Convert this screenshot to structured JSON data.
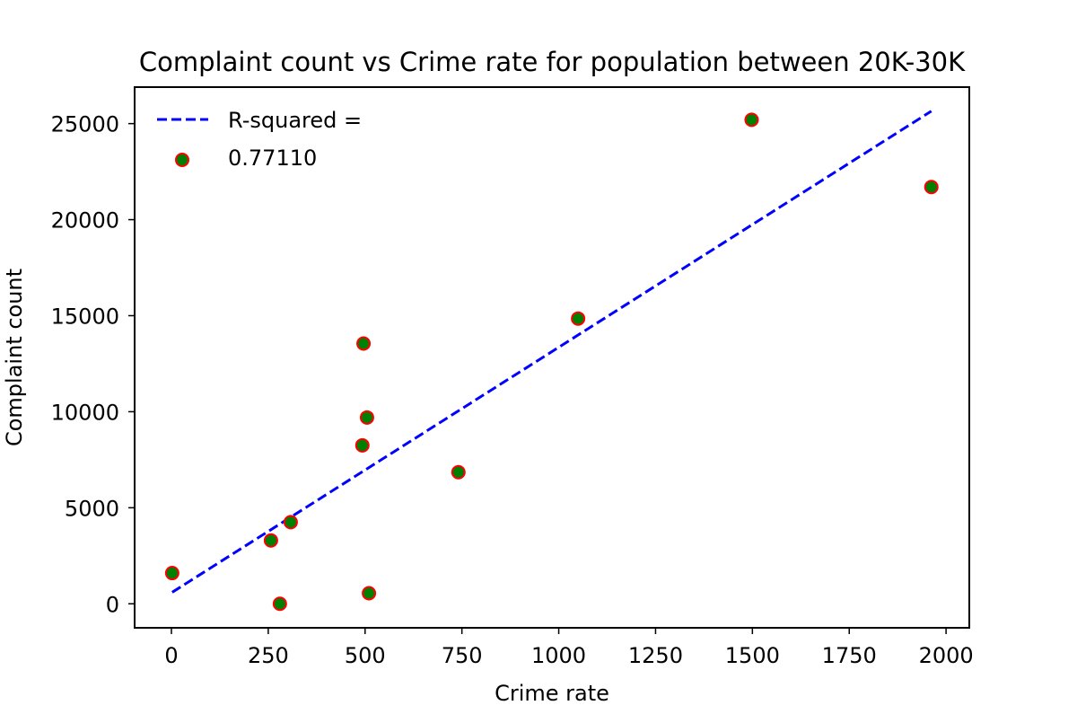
{
  "chart_data": {
    "type": "scatter",
    "title": "Complaint count vs Crime rate for population between 20K-30K",
    "xlabel": "Crime rate",
    "ylabel": "Complaint count",
    "xlim": [
      -95,
      2060
    ],
    "ylim": [
      -1250,
      26900
    ],
    "xticks": [
      0,
      250,
      500,
      750,
      1000,
      1250,
      1500,
      1750,
      2000
    ],
    "yticks": [
      0,
      5000,
      10000,
      15000,
      20000,
      25000
    ],
    "grid": false,
    "legend": {
      "placement": "top-left",
      "entries": [
        {
          "label": "R-squared =",
          "marker": "dashed-line",
          "color": "#0000ff"
        },
        {
          "label": "0.77110",
          "marker": "circle",
          "color": "#008000",
          "edgecolor": "#ff0000"
        }
      ]
    },
    "series": [
      {
        "kind": "scatter",
        "color": "#008000",
        "edgecolor": "#ff0000",
        "points": [
          {
            "x": 2,
            "y": 1600
          },
          {
            "x": 257,
            "y": 3300
          },
          {
            "x": 280,
            "y": 0
          },
          {
            "x": 308,
            "y": 4250
          },
          {
            "x": 493,
            "y": 8250
          },
          {
            "x": 496,
            "y": 13550
          },
          {
            "x": 505,
            "y": 9700
          },
          {
            "x": 510,
            "y": 550
          },
          {
            "x": 741,
            "y": 6850
          },
          {
            "x": 1050,
            "y": 14850
          },
          {
            "x": 1498,
            "y": 25200
          },
          {
            "x": 1962,
            "y": 21700
          }
        ]
      },
      {
        "kind": "line",
        "style": "dashed",
        "color": "#0000ff",
        "points": [
          {
            "x": 2,
            "y": 600
          },
          {
            "x": 1962,
            "y": 25650
          }
        ]
      }
    ]
  }
}
